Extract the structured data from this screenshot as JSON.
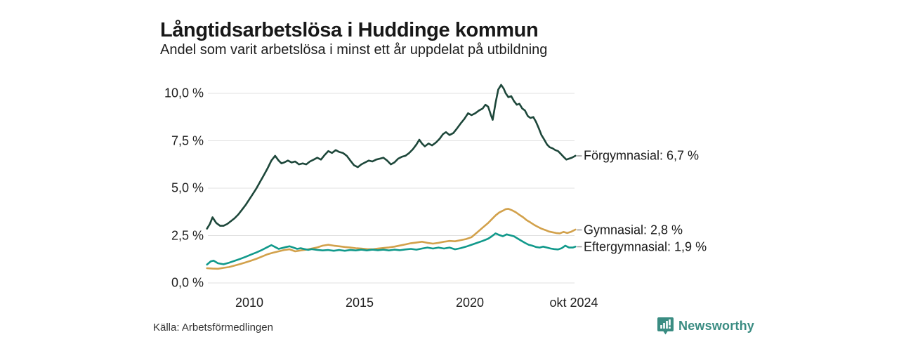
{
  "header": {
    "title": "Långtidsarbetslösa i Huddinge kommun",
    "subtitle": "Andel som varit arbetslösa i minst ett år uppdelat på utbildning"
  },
  "chart_data": {
    "type": "line",
    "title": "Långtidsarbetslösa i Huddinge kommun",
    "subtitle": "Andel som varit arbetslösa i minst ett år uppdelat på utbildning",
    "unit": "%",
    "grid": true,
    "legend_position": "end-of-line-labels-right",
    "x_axis": {
      "range": [
        2008.05,
        2024.8
      ],
      "ticks": [
        {
          "label": "2010",
          "x": 2010
        },
        {
          "label": "2015",
          "x": 2015
        },
        {
          "label": "2020",
          "x": 2020
        },
        {
          "label": "okt 2024",
          "x": 2024.79
        }
      ]
    },
    "y_axis": {
      "range": [
        0,
        10.6
      ],
      "ticks": [
        {
          "label": "0,0 %",
          "value": 0
        },
        {
          "label": "2,5 %",
          "value": 2.5
        },
        {
          "label": "5,0 %",
          "value": 5
        },
        {
          "label": "7,5 %",
          "value": 7.5
        },
        {
          "label": "10,0 %",
          "value": 10
        }
      ]
    },
    "series": [
      {
        "name": "Förgymnasial",
        "end_label": "Förgymnasial: 6,7 %",
        "latest_value": 6.7,
        "color": "#1d473a",
        "points": [
          [
            2008.08,
            2.85
          ],
          [
            2008.21,
            3.1
          ],
          [
            2008.33,
            3.45
          ],
          [
            2008.5,
            3.15
          ],
          [
            2008.67,
            3.0
          ],
          [
            2008.83,
            3.0
          ],
          [
            2009.0,
            3.1
          ],
          [
            2009.17,
            3.25
          ],
          [
            2009.33,
            3.4
          ],
          [
            2009.5,
            3.6
          ],
          [
            2009.67,
            3.85
          ],
          [
            2009.83,
            4.1
          ],
          [
            2010.0,
            4.4
          ],
          [
            2010.17,
            4.7
          ],
          [
            2010.33,
            5.0
          ],
          [
            2010.5,
            5.35
          ],
          [
            2010.67,
            5.7
          ],
          [
            2010.83,
            6.05
          ],
          [
            2011.0,
            6.45
          ],
          [
            2011.17,
            6.7
          ],
          [
            2011.33,
            6.45
          ],
          [
            2011.46,
            6.3
          ],
          [
            2011.58,
            6.35
          ],
          [
            2011.75,
            6.45
          ],
          [
            2011.92,
            6.35
          ],
          [
            2012.08,
            6.4
          ],
          [
            2012.25,
            6.25
          ],
          [
            2012.42,
            6.3
          ],
          [
            2012.58,
            6.25
          ],
          [
            2012.75,
            6.4
          ],
          [
            2012.92,
            6.5
          ],
          [
            2013.08,
            6.6
          ],
          [
            2013.25,
            6.5
          ],
          [
            2013.42,
            6.75
          ],
          [
            2013.58,
            6.95
          ],
          [
            2013.75,
            6.85
          ],
          [
            2013.92,
            7.0
          ],
          [
            2014.08,
            6.9
          ],
          [
            2014.25,
            6.85
          ],
          [
            2014.42,
            6.7
          ],
          [
            2014.58,
            6.45
          ],
          [
            2014.75,
            6.2
          ],
          [
            2014.92,
            6.1
          ],
          [
            2015.08,
            6.25
          ],
          [
            2015.25,
            6.35
          ],
          [
            2015.42,
            6.45
          ],
          [
            2015.58,
            6.4
          ],
          [
            2015.75,
            6.5
          ],
          [
            2015.92,
            6.55
          ],
          [
            2016.08,
            6.6
          ],
          [
            2016.25,
            6.45
          ],
          [
            2016.42,
            6.25
          ],
          [
            2016.58,
            6.35
          ],
          [
            2016.75,
            6.55
          ],
          [
            2016.92,
            6.65
          ],
          [
            2017.08,
            6.7
          ],
          [
            2017.25,
            6.85
          ],
          [
            2017.42,
            7.05
          ],
          [
            2017.58,
            7.3
          ],
          [
            2017.71,
            7.55
          ],
          [
            2017.83,
            7.35
          ],
          [
            2017.96,
            7.2
          ],
          [
            2018.13,
            7.35
          ],
          [
            2018.29,
            7.25
          ],
          [
            2018.46,
            7.4
          ],
          [
            2018.63,
            7.6
          ],
          [
            2018.79,
            7.85
          ],
          [
            2018.92,
            7.95
          ],
          [
            2019.08,
            7.8
          ],
          [
            2019.25,
            7.9
          ],
          [
            2019.42,
            8.15
          ],
          [
            2019.58,
            8.4
          ],
          [
            2019.75,
            8.65
          ],
          [
            2019.92,
            8.95
          ],
          [
            2020.08,
            8.85
          ],
          [
            2020.25,
            8.95
          ],
          [
            2020.42,
            9.1
          ],
          [
            2020.58,
            9.2
          ],
          [
            2020.71,
            9.4
          ],
          [
            2020.83,
            9.3
          ],
          [
            2020.96,
            8.85
          ],
          [
            2021.04,
            8.6
          ],
          [
            2021.17,
            9.5
          ],
          [
            2021.29,
            10.2
          ],
          [
            2021.42,
            10.45
          ],
          [
            2021.54,
            10.25
          ],
          [
            2021.63,
            10.0
          ],
          [
            2021.75,
            9.8
          ],
          [
            2021.88,
            9.85
          ],
          [
            2022.0,
            9.6
          ],
          [
            2022.13,
            9.4
          ],
          [
            2022.25,
            9.45
          ],
          [
            2022.38,
            9.2
          ],
          [
            2022.5,
            9.1
          ],
          [
            2022.63,
            8.8
          ],
          [
            2022.75,
            8.7
          ],
          [
            2022.88,
            8.75
          ],
          [
            2023.0,
            8.5
          ],
          [
            2023.13,
            8.15
          ],
          [
            2023.25,
            7.8
          ],
          [
            2023.38,
            7.55
          ],
          [
            2023.5,
            7.3
          ],
          [
            2023.63,
            7.15
          ],
          [
            2023.75,
            7.1
          ],
          [
            2023.88,
            7.0
          ],
          [
            2024.0,
            6.95
          ],
          [
            2024.13,
            6.8
          ],
          [
            2024.25,
            6.65
          ],
          [
            2024.38,
            6.5
          ],
          [
            2024.5,
            6.55
          ],
          [
            2024.63,
            6.6
          ],
          [
            2024.79,
            6.7
          ]
        ]
      },
      {
        "name": "Gymnasial",
        "end_label": "Gymnasial: 2,8 %",
        "latest_value": 2.8,
        "color": "#d2a14b",
        "points": [
          [
            2008.08,
            0.76
          ],
          [
            2008.33,
            0.74
          ],
          [
            2008.58,
            0.73
          ],
          [
            2008.83,
            0.78
          ],
          [
            2009.08,
            0.82
          ],
          [
            2009.33,
            0.9
          ],
          [
            2009.58,
            0.98
          ],
          [
            2009.83,
            1.07
          ],
          [
            2010.08,
            1.16
          ],
          [
            2010.33,
            1.26
          ],
          [
            2010.58,
            1.38
          ],
          [
            2010.83,
            1.5
          ],
          [
            2011.08,
            1.58
          ],
          [
            2011.33,
            1.65
          ],
          [
            2011.58,
            1.72
          ],
          [
            2011.83,
            1.76
          ],
          [
            2012.08,
            1.65
          ],
          [
            2012.33,
            1.7
          ],
          [
            2012.58,
            1.74
          ],
          [
            2012.83,
            1.8
          ],
          [
            2013.08,
            1.86
          ],
          [
            2013.33,
            1.95
          ],
          [
            2013.58,
            2.0
          ],
          [
            2013.83,
            1.95
          ],
          [
            2014.08,
            1.92
          ],
          [
            2014.33,
            1.88
          ],
          [
            2014.58,
            1.85
          ],
          [
            2014.83,
            1.82
          ],
          [
            2015.08,
            1.8
          ],
          [
            2015.33,
            1.77
          ],
          [
            2015.58,
            1.76
          ],
          [
            2015.83,
            1.8
          ],
          [
            2016.08,
            1.83
          ],
          [
            2016.33,
            1.86
          ],
          [
            2016.58,
            1.9
          ],
          [
            2016.83,
            1.96
          ],
          [
            2017.08,
            2.02
          ],
          [
            2017.33,
            2.08
          ],
          [
            2017.58,
            2.12
          ],
          [
            2017.83,
            2.16
          ],
          [
            2018.08,
            2.1
          ],
          [
            2018.33,
            2.06
          ],
          [
            2018.58,
            2.1
          ],
          [
            2018.83,
            2.16
          ],
          [
            2019.08,
            2.2
          ],
          [
            2019.33,
            2.18
          ],
          [
            2019.58,
            2.24
          ],
          [
            2019.83,
            2.3
          ],
          [
            2020.08,
            2.4
          ],
          [
            2020.33,
            2.65
          ],
          [
            2020.58,
            2.9
          ],
          [
            2020.83,
            3.15
          ],
          [
            2021.0,
            3.35
          ],
          [
            2021.17,
            3.55
          ],
          [
            2021.33,
            3.7
          ],
          [
            2021.5,
            3.8
          ],
          [
            2021.63,
            3.88
          ],
          [
            2021.75,
            3.9
          ],
          [
            2021.92,
            3.82
          ],
          [
            2022.08,
            3.72
          ],
          [
            2022.25,
            3.58
          ],
          [
            2022.42,
            3.45
          ],
          [
            2022.58,
            3.3
          ],
          [
            2022.75,
            3.18
          ],
          [
            2022.92,
            3.05
          ],
          [
            2023.08,
            2.95
          ],
          [
            2023.25,
            2.85
          ],
          [
            2023.42,
            2.78
          ],
          [
            2023.58,
            2.7
          ],
          [
            2023.75,
            2.66
          ],
          [
            2023.92,
            2.62
          ],
          [
            2024.08,
            2.6
          ],
          [
            2024.25,
            2.68
          ],
          [
            2024.42,
            2.62
          ],
          [
            2024.58,
            2.68
          ],
          [
            2024.79,
            2.8
          ]
        ]
      },
      {
        "name": "Eftergymnasial",
        "end_label": "Eftergymnasial: 1,9 %",
        "latest_value": 1.9,
        "color": "#11998b",
        "points": [
          [
            2008.08,
            0.95
          ],
          [
            2008.25,
            1.12
          ],
          [
            2008.38,
            1.16
          ],
          [
            2008.58,
            1.02
          ],
          [
            2008.83,
            0.97
          ],
          [
            2009.08,
            1.05
          ],
          [
            2009.33,
            1.15
          ],
          [
            2009.58,
            1.25
          ],
          [
            2009.83,
            1.36
          ],
          [
            2010.08,
            1.48
          ],
          [
            2010.33,
            1.6
          ],
          [
            2010.58,
            1.73
          ],
          [
            2010.83,
            1.88
          ],
          [
            2011.0,
            1.98
          ],
          [
            2011.17,
            1.88
          ],
          [
            2011.33,
            1.78
          ],
          [
            2011.5,
            1.83
          ],
          [
            2011.67,
            1.88
          ],
          [
            2011.83,
            1.92
          ],
          [
            2012.0,
            1.85
          ],
          [
            2012.17,
            1.78
          ],
          [
            2012.33,
            1.82
          ],
          [
            2012.5,
            1.77
          ],
          [
            2012.67,
            1.73
          ],
          [
            2012.83,
            1.77
          ],
          [
            2013.08,
            1.73
          ],
          [
            2013.33,
            1.7
          ],
          [
            2013.58,
            1.72
          ],
          [
            2013.83,
            1.68
          ],
          [
            2014.08,
            1.72
          ],
          [
            2014.33,
            1.68
          ],
          [
            2014.58,
            1.72
          ],
          [
            2014.83,
            1.7
          ],
          [
            2015.08,
            1.74
          ],
          [
            2015.33,
            1.7
          ],
          [
            2015.58,
            1.74
          ],
          [
            2015.83,
            1.71
          ],
          [
            2016.08,
            1.74
          ],
          [
            2016.33,
            1.7
          ],
          [
            2016.58,
            1.74
          ],
          [
            2016.83,
            1.71
          ],
          [
            2017.08,
            1.75
          ],
          [
            2017.33,
            1.78
          ],
          [
            2017.58,
            1.74
          ],
          [
            2017.83,
            1.8
          ],
          [
            2018.08,
            1.85
          ],
          [
            2018.33,
            1.8
          ],
          [
            2018.58,
            1.85
          ],
          [
            2018.83,
            1.8
          ],
          [
            2019.08,
            1.85
          ],
          [
            2019.33,
            1.76
          ],
          [
            2019.58,
            1.82
          ],
          [
            2019.83,
            1.9
          ],
          [
            2020.08,
            2.0
          ],
          [
            2020.33,
            2.1
          ],
          [
            2020.58,
            2.2
          ],
          [
            2020.83,
            2.32
          ],
          [
            2021.0,
            2.45
          ],
          [
            2021.17,
            2.6
          ],
          [
            2021.33,
            2.52
          ],
          [
            2021.5,
            2.45
          ],
          [
            2021.67,
            2.55
          ],
          [
            2021.83,
            2.5
          ],
          [
            2022.0,
            2.45
          ],
          [
            2022.17,
            2.33
          ],
          [
            2022.33,
            2.22
          ],
          [
            2022.5,
            2.1
          ],
          [
            2022.67,
            2.0
          ],
          [
            2022.83,
            1.95
          ],
          [
            2023.0,
            1.88
          ],
          [
            2023.17,
            1.85
          ],
          [
            2023.33,
            1.9
          ],
          [
            2023.5,
            1.85
          ],
          [
            2023.67,
            1.8
          ],
          [
            2023.83,
            1.77
          ],
          [
            2024.0,
            1.75
          ],
          [
            2024.17,
            1.82
          ],
          [
            2024.33,
            1.95
          ],
          [
            2024.5,
            1.85
          ],
          [
            2024.67,
            1.85
          ],
          [
            2024.79,
            1.9
          ]
        ]
      }
    ]
  },
  "footer": {
    "source": "Källa: Arbetsförmedlingen",
    "brand": {
      "name": "Newsworthy",
      "color": "#3a8c82",
      "icon": "bar-chart-speech-bubble-icon"
    }
  }
}
